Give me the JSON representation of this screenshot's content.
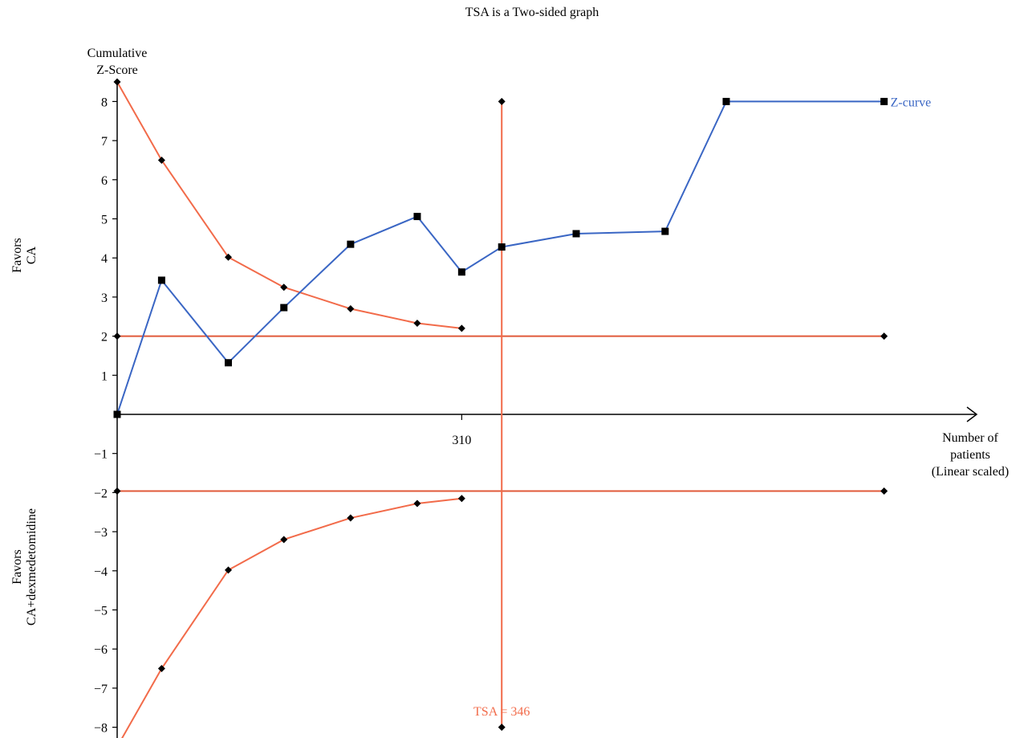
{
  "title": "TSA is a Two-sided graph",
  "y_axis_title": [
    "Cumulative",
    "Z-Score"
  ],
  "x_axis_title": [
    "Number of",
    "patients",
    "(Linear scaled)"
  ],
  "favors_top": [
    "Favors",
    "CA"
  ],
  "favors_bottom": [
    "Favors",
    "CA+dexmedetomidine"
  ],
  "colors": {
    "z_curve": "#3a66c4",
    "boundary": "#f26b4a",
    "conventional": "#e05a3a",
    "axis": "#000000",
    "marker": "#000000"
  },
  "chart_data": {
    "type": "line",
    "title": "TSA is a Two-sided graph",
    "ylabel": "Cumulative Z-Score",
    "xlabel": "Number of patients (Linear scaled)",
    "ylim": [
      -8,
      8.4
    ],
    "xlim": [
      0,
      665
    ],
    "x_tick_labels": [
      {
        "x": 310,
        "label": "310"
      }
    ],
    "y_ticks": [
      -8,
      -7,
      -6,
      -5,
      -4,
      -3,
      -2,
      -1,
      1,
      2,
      3,
      4,
      5,
      6,
      7,
      8
    ],
    "series": [
      {
        "name": "Z-curve",
        "marker": "square",
        "points": [
          [
            0,
            0
          ],
          [
            40,
            3.43
          ],
          [
            100,
            1.32
          ],
          [
            150,
            2.73
          ],
          [
            210,
            4.35
          ],
          [
            270,
            5.06
          ],
          [
            310,
            3.64
          ],
          [
            346,
            4.28
          ],
          [
            413,
            4.62
          ],
          [
            493,
            4.68
          ],
          [
            548,
            8.0
          ],
          [
            690,
            8.0
          ]
        ]
      },
      {
        "marker": "diamond",
        "points": [
          [
            0,
            8.5
          ],
          [
            40,
            6.5
          ],
          [
            100,
            4.02
          ],
          [
            150,
            3.25
          ],
          [
            210,
            2.7
          ],
          [
            270,
            2.33
          ],
          [
            310,
            2.2
          ]
        ]
      },
      {
        "marker": "diamond",
        "points": [
          [
            0,
            -8.5
          ],
          [
            40,
            -6.5
          ],
          [
            100,
            -3.98
          ],
          [
            150,
            -3.2
          ],
          [
            210,
            -2.65
          ],
          [
            270,
            -2.28
          ],
          [
            310,
            -2.15
          ]
        ]
      },
      {
        "marker": "diamond",
        "points": [
          [
            0,
            2.0
          ],
          [
            690,
            2.0
          ]
        ]
      },
      {
        "marker": "diamond",
        "points": [
          [
            0,
            -1.96
          ],
          [
            690,
            -1.96
          ]
        ]
      },
      {
        "marker": "diamond",
        "points": [
          [
            346,
            8.0
          ],
          [
            346,
            -8.0
          ]
        ]
      }
    ],
    "annotations": [
      {
        "text": "TSA = 346",
        "x": 346,
        "y": -7.7
      }
    ]
  }
}
